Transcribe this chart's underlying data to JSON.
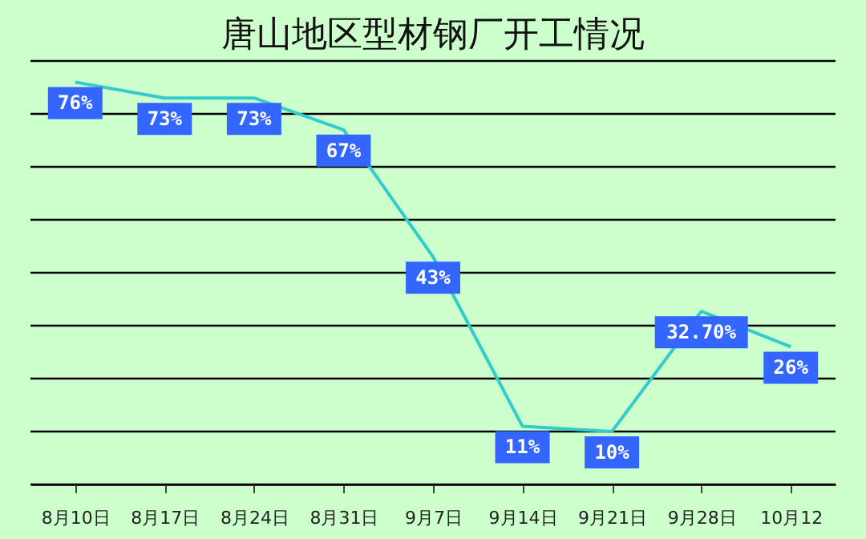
{
  "chart_data": {
    "type": "line",
    "title": "唐山地区型材钢厂开工情况",
    "categories": [
      "8月10日",
      "8月17日",
      "8月24日",
      "8月31日",
      "9月7日",
      "9月14日",
      "9月21日",
      "9月28日",
      "10月12"
    ],
    "series": [
      {
        "color": "#33cccc",
        "values": [
          76,
          73,
          73,
          67,
          43,
          11,
          10,
          32.7,
          26
        ],
        "value_labels": [
          "76%",
          "73%",
          "73%",
          "67%",
          "43%",
          "11%",
          "10%",
          "32.70%",
          "26%"
        ]
      }
    ],
    "ylim": [
      0,
      80
    ],
    "yticks": [
      {
        "value": 0,
        "label": null
      },
      {
        "value": 10,
        "label": null
      },
      {
        "value": 20,
        "label": null
      },
      {
        "value": 30,
        "label": null
      },
      {
        "value": 40,
        "label": null
      },
      {
        "value": 50,
        "label": null
      },
      {
        "value": 60,
        "label": null
      },
      {
        "value": 70,
        "label": null
      },
      {
        "value": 80,
        "label": null
      }
    ],
    "tick_labels": "x",
    "grid": "y",
    "marker": "none",
    "line_style": "solid"
  }
}
